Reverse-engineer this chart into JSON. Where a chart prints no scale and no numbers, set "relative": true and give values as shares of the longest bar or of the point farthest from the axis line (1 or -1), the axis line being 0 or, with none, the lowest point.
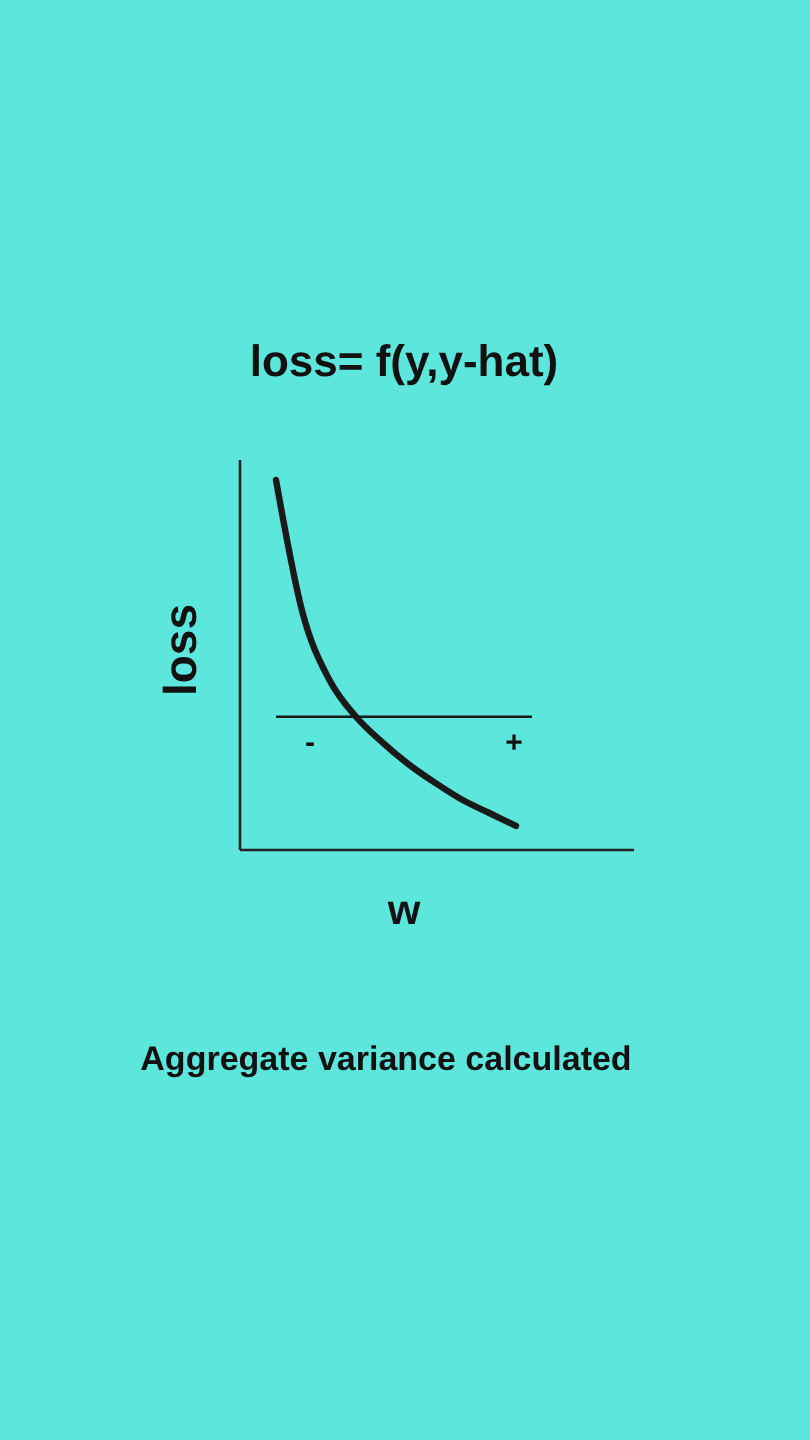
{
  "chart_data": {
    "type": "line",
    "title": "loss= f(y,y-hat)",
    "xlabel": "w",
    "ylabel": "loss",
    "relative": true,
    "categories": [
      null,
      null,
      null,
      null,
      null,
      null,
      null,
      null,
      null,
      null
    ],
    "series": [
      {
        "color": "#1a1a1a",
        "values": [
          1,
          0.64,
          0.46,
          0.36,
          0.29,
          0.23,
          0.18,
          0.135,
          0.1,
          0.065
        ]
      }
    ],
    "ref_lines": [
      {
        "axis": "y",
        "value": 0.36,
        "color": "#1a1a1a"
      }
    ],
    "annotations": [
      "-",
      "+",
      "Aggregate variance calculated"
    ]
  }
}
